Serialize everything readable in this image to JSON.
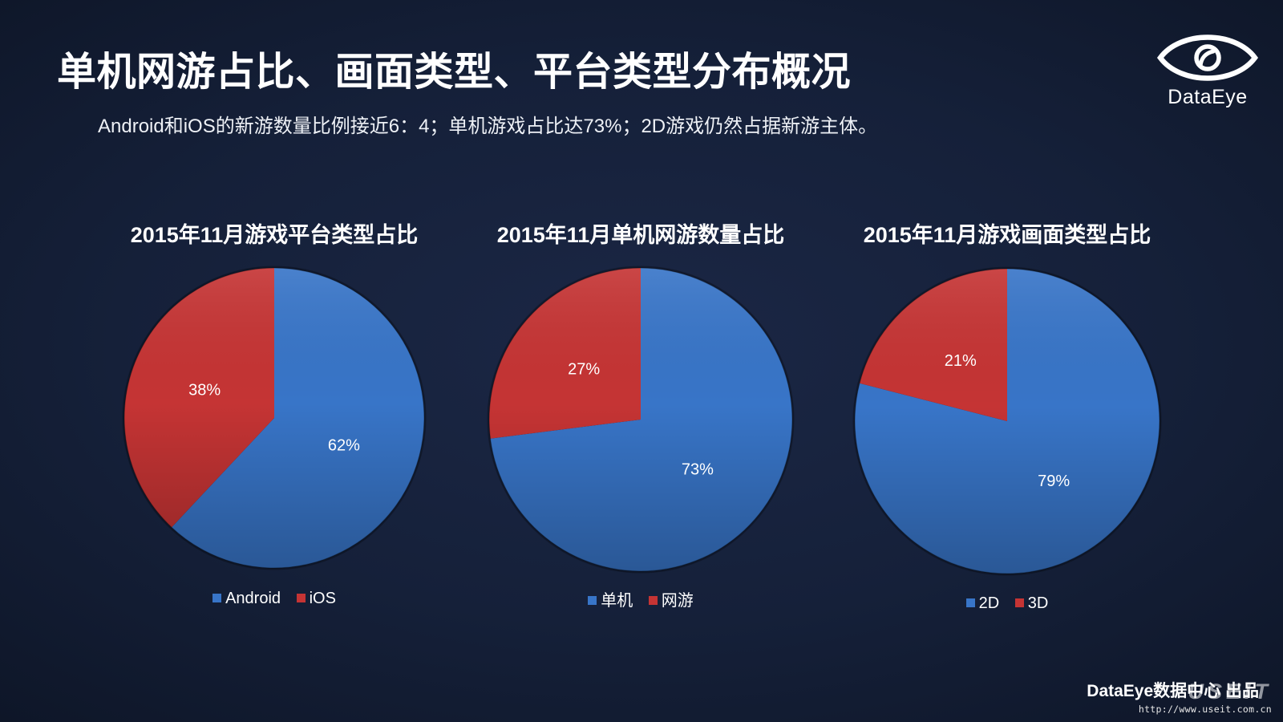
{
  "slide": {
    "title": "单机网游占比、画面类型、平台类型分布概况",
    "subtitle": "Android和iOS的新游数量比例接近6：4；单机游戏占比达73%；2D游戏仍然占据新游主体。",
    "footer": "DataEye数据中心 出品"
  },
  "logo": {
    "icon": "dataeye-eye-icon",
    "text": "DataEye"
  },
  "watermark": {
    "text": "USEIT",
    "url": "http://www.useit.com.cn"
  },
  "colors": {
    "background": "#152039",
    "text": "#ffffff",
    "blue": "#3875c8",
    "red": "#c53434"
  },
  "chart_data": [
    {
      "type": "pie",
      "title": "2015年11月游戏平台类型占比",
      "categories": [
        "Android",
        "iOS"
      ],
      "values": [
        62,
        38
      ],
      "labels": [
        "62%",
        "38%"
      ],
      "colors": [
        "#3875c8",
        "#c53434"
      ],
      "legend": "bottom"
    },
    {
      "type": "pie",
      "title": "2015年11月单机网游数量占比",
      "categories": [
        "单机",
        "网游"
      ],
      "values": [
        73,
        27
      ],
      "labels": [
        "73%",
        "27%"
      ],
      "colors": [
        "#3875c8",
        "#c53434"
      ],
      "legend": "bottom"
    },
    {
      "type": "pie",
      "title": "2015年11月游戏画面类型占比",
      "categories": [
        "2D",
        "3D"
      ],
      "values": [
        79,
        21
      ],
      "labels": [
        "79%",
        "21%"
      ],
      "colors": [
        "#3875c8",
        "#c53434"
      ],
      "legend": "bottom"
    }
  ]
}
